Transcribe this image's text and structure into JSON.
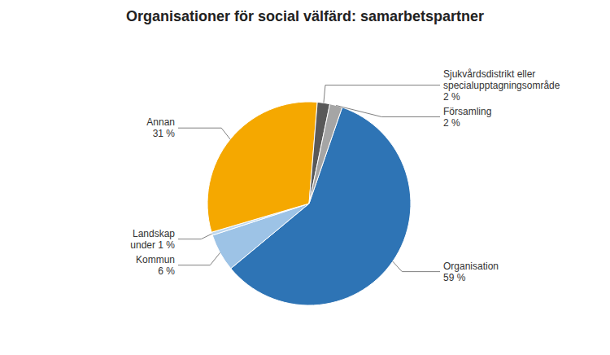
{
  "chart_data": {
    "type": "pie",
    "title": "Organisationer för social välfärd: samarbetspartner",
    "categories": [
      "Organisation\n59 %",
      "Kommun\n6 %",
      "Landskap\nunder 1 %",
      "Annan\n31 %",
      "Sjukvårdsdistrikt eller\nspecialupptagningsområde\n2 %",
      "Församling\n2 %"
    ],
    "values": [
      59,
      6,
      0.5,
      31,
      2,
      2
    ],
    "colors": [
      "#2E74B5",
      "#9DC3E6",
      "#BDD7EE",
      "#F5A800",
      "#595959",
      "#A5A5A5"
    ]
  }
}
